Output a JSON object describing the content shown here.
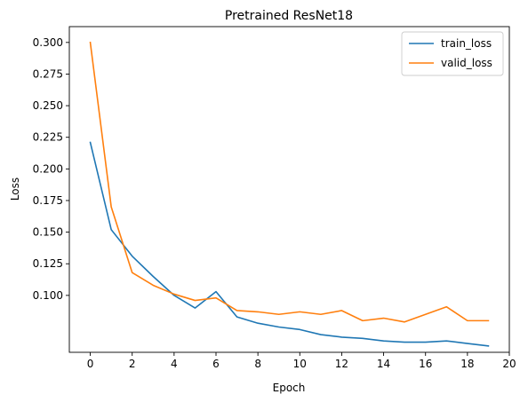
{
  "chart_data": {
    "type": "line",
    "title": "Pretrained ResNet18",
    "xlabel": "Epoch",
    "ylabel": "Loss",
    "xlim": [
      -1,
      20
    ],
    "ylim": [
      0.055,
      0.3125
    ],
    "xticks": [
      0,
      2,
      4,
      6,
      8,
      10,
      12,
      14,
      16,
      18,
      20
    ],
    "xtick_labels": [
      "0",
      "2",
      "4",
      "6",
      "8",
      "10",
      "12",
      "14",
      "16",
      "18",
      "20"
    ],
    "yticks": [
      0.1,
      0.125,
      0.15,
      0.175,
      0.2,
      0.225,
      0.25,
      0.275,
      0.3
    ],
    "ytick_labels": [
      "0.100",
      "0.125",
      "0.150",
      "0.175",
      "0.200",
      "0.225",
      "0.250",
      "0.275",
      "0.300"
    ],
    "grid": false,
    "legend_position": "top-right",
    "x": [
      0,
      1,
      2,
      3,
      4,
      5,
      6,
      7,
      8,
      9,
      10,
      11,
      12,
      13,
      14,
      15,
      16,
      17,
      18,
      19
    ],
    "series": [
      {
        "name": "train_loss",
        "color": "#1f77b4",
        "values": [
          0.221,
          0.152,
          0.131,
          0.115,
          0.1,
          0.09,
          0.103,
          0.083,
          0.078,
          0.075,
          0.073,
          0.069,
          0.067,
          0.066,
          0.064,
          0.063,
          0.063,
          0.064,
          0.062,
          0.06
        ]
      },
      {
        "name": "valid_loss",
        "color": "#ff7f0e",
        "values": [
          0.3,
          0.17,
          0.118,
          0.108,
          0.101,
          0.096,
          0.098,
          0.088,
          0.087,
          0.085,
          0.087,
          0.085,
          0.088,
          0.08,
          0.082,
          0.079,
          0.085,
          0.091,
          0.08,
          0.08
        ]
      }
    ]
  }
}
